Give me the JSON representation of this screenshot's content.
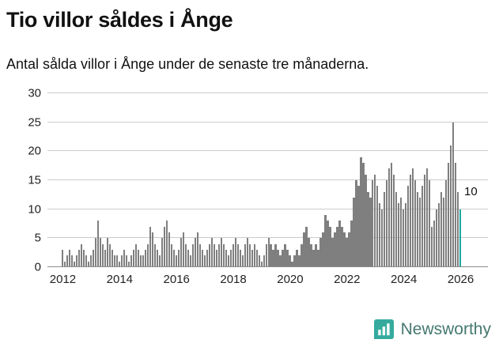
{
  "header": {
    "title": "Tio villor såldes i Ånge",
    "subtitle": "Antal sålda villor i Ånge under de senaste tre månaderna."
  },
  "chart_data": {
    "type": "bar",
    "title": "Tio villor såldes i Ånge",
    "subtitle": "Antal sålda villor i Ånge under de senaste tre månaderna.",
    "xlabel": "",
    "ylabel": "",
    "ylim": [
      0,
      30
    ],
    "y_ticks": [
      0,
      5,
      10,
      15,
      20,
      25,
      30
    ],
    "x_ticks": [
      2012,
      2014,
      2016,
      2018,
      2020,
      2022,
      2024,
      2026
    ],
    "start_year": 2012,
    "frequency": "monthly",
    "grid": "horizontal",
    "legend": "none",
    "values": [
      3,
      1,
      2,
      3,
      2,
      1,
      2,
      3,
      4,
      3,
      2,
      1,
      2,
      3,
      5,
      8,
      5,
      4,
      3,
      5,
      4,
      3,
      2,
      2,
      1,
      2,
      3,
      2,
      1,
      2,
      3,
      4,
      3,
      2,
      2,
      3,
      4,
      7,
      6,
      4,
      3,
      2,
      5,
      7,
      8,
      6,
      4,
      3,
      2,
      3,
      5,
      6,
      4,
      3,
      2,
      4,
      5,
      6,
      4,
      3,
      2,
      3,
      4,
      5,
      4,
      3,
      4,
      5,
      4,
      3,
      2,
      3,
      4,
      5,
      4,
      3,
      2,
      4,
      5,
      4,
      3,
      4,
      3,
      2,
      1,
      2,
      4,
      5,
      4,
      3,
      4,
      3,
      2,
      3,
      4,
      3,
      2,
      1,
      2,
      3,
      2,
      4,
      6,
      7,
      5,
      4,
      3,
      4,
      3,
      5,
      6,
      9,
      8,
      7,
      5,
      6,
      7,
      8,
      7,
      6,
      5,
      6,
      8,
      12,
      15,
      14,
      19,
      18,
      16,
      13,
      12,
      15,
      16,
      14,
      11,
      10,
      13,
      15,
      17,
      18,
      16,
      13,
      11,
      12,
      10,
      11,
      14,
      16,
      17,
      15,
      13,
      12,
      14,
      16,
      17,
      15,
      7,
      8,
      10,
      11,
      13,
      12,
      15,
      18,
      21,
      25,
      18,
      13,
      10
    ],
    "highlight_index": 168,
    "highlight_value": 10,
    "highlight_label": "10",
    "bar_color": "#7f7f7f",
    "highlight_color": "#18a69e",
    "layout": {
      "total_slots": 186,
      "lead_slots": 6,
      "bar_width_slots": 0.75
    }
  },
  "footer": {
    "brand": "Newsworthy",
    "brand_icon": "newsworthy-logo-icon",
    "icon_color": "#35ab9e",
    "text_color": "#45786f"
  }
}
